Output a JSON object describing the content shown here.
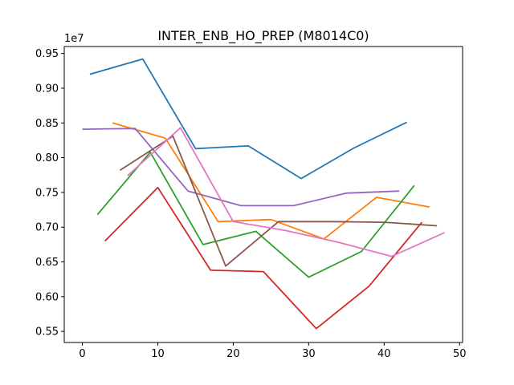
{
  "chart_data": {
    "type": "line",
    "title": "INTER_ENB_HO_PREP (M8014C0)",
    "xlabel": "",
    "ylabel": "",
    "y_offset_label": "1e7",
    "xlim": [
      -2.4,
      50.4
    ],
    "ylim": [
      5.34,
      9.6
    ],
    "x_ticks": [
      0,
      10,
      20,
      30,
      40,
      50
    ],
    "y_ticks": [
      5.5,
      6.0,
      6.5,
      7.0,
      7.5,
      8.0,
      8.5,
      9.0,
      9.5
    ],
    "x_tick_labels": [
      "0",
      "10",
      "20",
      "30",
      "40",
      "50"
    ],
    "y_tick_labels": [
      "0.55",
      "0.60",
      "0.65",
      "0.70",
      "0.75",
      "0.80",
      "0.85",
      "0.90",
      "0.95"
    ],
    "grid": false,
    "legend": "none",
    "series": [
      {
        "color": "#1f77b4",
        "x": [
          1,
          8,
          15,
          22,
          29,
          36,
          43
        ],
        "y": [
          9.2,
          9.42,
          8.13,
          8.17,
          7.7,
          8.14,
          8.51
        ]
      },
      {
        "color": "#ff7f0e",
        "x": [
          4,
          11,
          18,
          25,
          32,
          39,
          46
        ],
        "y": [
          8.5,
          8.28,
          7.08,
          7.11,
          6.83,
          7.43,
          7.29
        ]
      },
      {
        "color": "#2ca02c",
        "x": [
          2,
          9,
          16,
          23,
          30,
          37,
          44
        ],
        "y": [
          7.18,
          8.08,
          6.75,
          6.94,
          6.28,
          6.65,
          7.6
        ]
      },
      {
        "color": "#d62728",
        "x": [
          3,
          10,
          17,
          24,
          31,
          38,
          45
        ],
        "y": [
          6.8,
          7.57,
          6.38,
          6.36,
          5.54,
          6.15,
          7.07
        ]
      },
      {
        "color": "#9467bd",
        "x": [
          0,
          7,
          14,
          21,
          28,
          35,
          42
        ],
        "y": [
          8.41,
          8.42,
          7.52,
          7.31,
          7.31,
          7.49,
          7.52
        ]
      },
      {
        "color": "#8c564b",
        "x": [
          5,
          12,
          19,
          26,
          33,
          40,
          47
        ],
        "y": [
          7.82,
          8.31,
          6.44,
          7.08,
          7.08,
          7.07,
          7.02
        ]
      },
      {
        "color": "#e377c2",
        "x": [
          6,
          13,
          20,
          27,
          34,
          41,
          48
        ],
        "y": [
          7.74,
          8.43,
          7.08,
          6.95,
          6.78,
          6.58,
          6.92
        ]
      }
    ]
  }
}
